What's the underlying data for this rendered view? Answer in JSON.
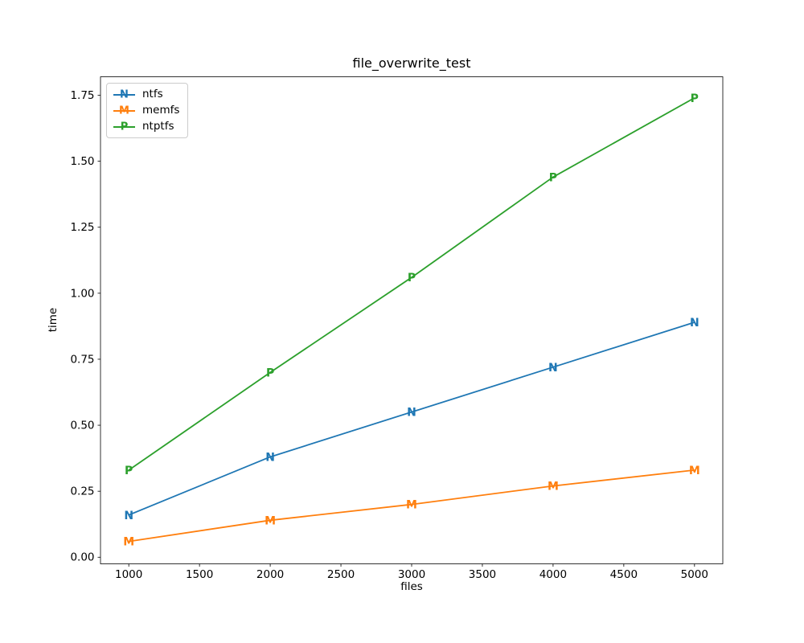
{
  "chart_data": {
    "type": "line",
    "title": "file_overwrite_test",
    "xlabel": "files",
    "ylabel": "time",
    "x": [
      1000,
      2000,
      3000,
      4000,
      5000
    ],
    "series": [
      {
        "name": "ntfs",
        "color": "#1f77b4",
        "marker": "N",
        "values": [
          0.16,
          0.38,
          0.55,
          0.72,
          0.89
        ]
      },
      {
        "name": "memfs",
        "color": "#ff7f0e",
        "marker": "M",
        "values": [
          0.06,
          0.14,
          0.2,
          0.27,
          0.33
        ]
      },
      {
        "name": "ntptfs",
        "color": "#2ca02c",
        "marker": "P",
        "values": [
          0.33,
          0.7,
          1.06,
          1.44,
          1.74
        ]
      }
    ],
    "xticks": [
      1000,
      1500,
      2000,
      2500,
      3000,
      3500,
      4000,
      4500,
      5000
    ],
    "xtick_labels": [
      "1000",
      "1500",
      "2000",
      "2500",
      "3000",
      "3500",
      "4000",
      "4500",
      "5000"
    ],
    "yticks": [
      0.0,
      0.25,
      0.5,
      0.75,
      1.0,
      1.25,
      1.5,
      1.75
    ],
    "ytick_labels": [
      "0.00",
      "0.25",
      "0.50",
      "0.75",
      "1.00",
      "1.25",
      "1.50",
      "1.75"
    ],
    "xlim": [
      800,
      5200
    ],
    "ylim": [
      -0.025,
      1.82
    ],
    "legend_position": "upper left",
    "grid": false,
    "axis_color": "#000000",
    "background_color": "#ffffff"
  }
}
